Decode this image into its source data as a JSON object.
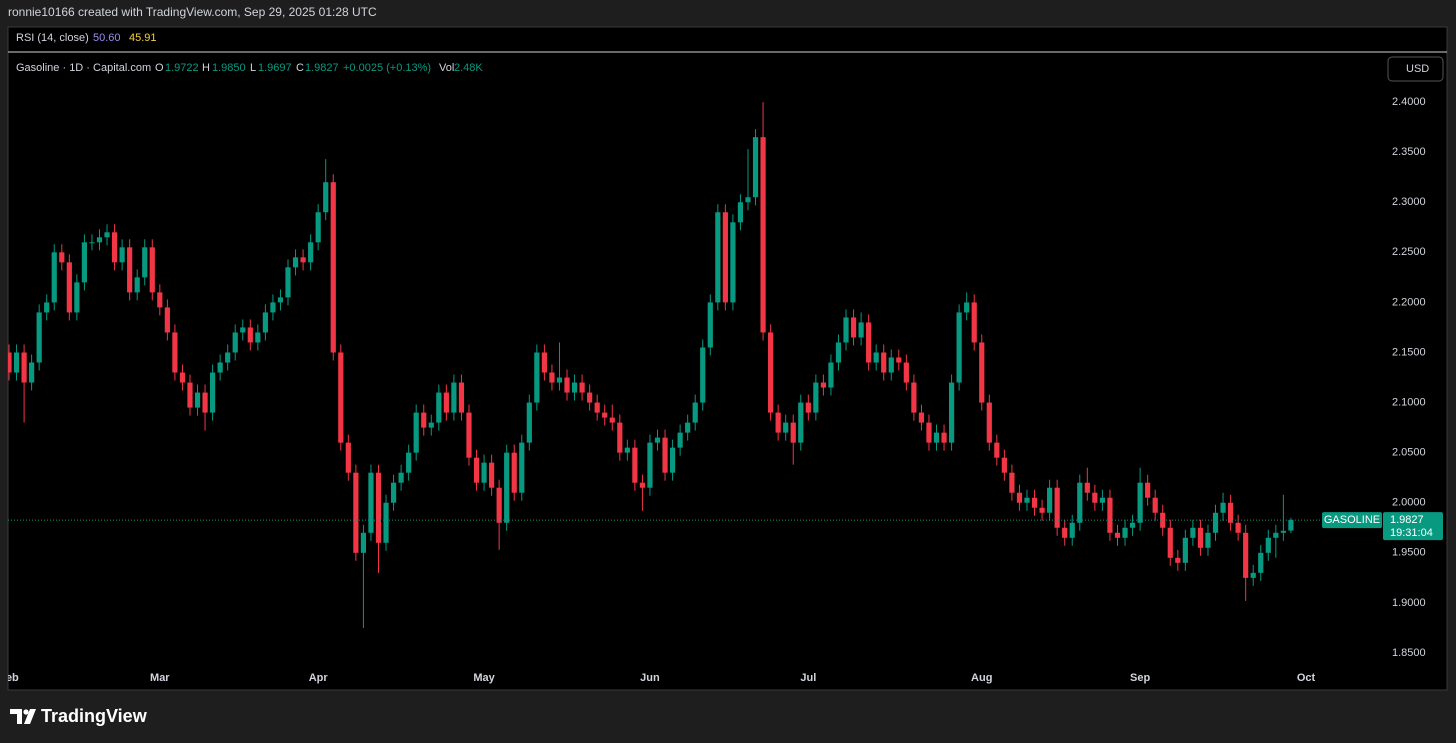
{
  "header": {
    "credit": "ronnie10166 created with TradingView.com, Sep 29, 2025 01:28 UTC"
  },
  "indicator": {
    "name": "RSI (14, close)",
    "value1": "50.60",
    "value2": "45.91"
  },
  "legend": {
    "symbol": "Gasoline · 1D · Capital.com",
    "o_label": "O",
    "open": "1.9722",
    "h_label": "H",
    "high": "1.9850",
    "l_label": "L",
    "low": "1.9697",
    "c_label": "C",
    "close": "1.9827",
    "change": "+0.0025 (+0.13%)",
    "vol_label": "Vol",
    "volume": "2.48K"
  },
  "currency_button": "USD",
  "price_tag": {
    "name": "GASOLINE",
    "countdown": "19:31:04"
  },
  "footer": {
    "brand": "TradingView"
  },
  "chart_data": {
    "type": "candlestick",
    "up_color": "#089981",
    "down_color": "#f23645",
    "grid": false,
    "ylim": [
      1.838,
      2.449
    ],
    "yticks": [
      {
        "value": 1.85,
        "label": "1.8500"
      },
      {
        "value": 1.9,
        "label": "1.9000"
      },
      {
        "value": 1.95,
        "label": "1.9500"
      },
      {
        "value": 2.0,
        "label": "2.0000"
      },
      {
        "value": 2.05,
        "label": "2.0500"
      },
      {
        "value": 2.1,
        "label": "2.1000"
      },
      {
        "value": 2.15,
        "label": "2.1500"
      },
      {
        "value": 2.2,
        "label": "2.2000"
      },
      {
        "value": 2.25,
        "label": "2.2500"
      },
      {
        "value": 2.3,
        "label": "2.3000"
      },
      {
        "value": 2.35,
        "label": "2.3500"
      },
      {
        "value": 2.4,
        "label": "2.4000"
      }
    ],
    "categories": [
      "Feb",
      null,
      null,
      null,
      null,
      null,
      null,
      null,
      null,
      null,
      null,
      null,
      null,
      null,
      null,
      null,
      null,
      null,
      null,
      null,
      "Mar",
      null,
      null,
      null,
      null,
      null,
      null,
      null,
      null,
      null,
      null,
      null,
      null,
      null,
      null,
      null,
      null,
      null,
      null,
      null,
      null,
      "Apr",
      null,
      null,
      null,
      null,
      null,
      null,
      null,
      null,
      null,
      null,
      null,
      null,
      null,
      null,
      null,
      null,
      null,
      null,
      null,
      null,
      null,
      "May",
      null,
      null,
      null,
      null,
      null,
      null,
      null,
      null,
      null,
      null,
      null,
      null,
      null,
      null,
      null,
      null,
      null,
      null,
      null,
      null,
      null,
      "Jun",
      null,
      null,
      null,
      null,
      null,
      null,
      null,
      null,
      null,
      null,
      null,
      null,
      null,
      null,
      null,
      null,
      null,
      null,
      null,
      null,
      "Jul",
      null,
      null,
      null,
      null,
      null,
      null,
      null,
      null,
      null,
      null,
      null,
      null,
      null,
      null,
      null,
      null,
      null,
      null,
      null,
      null,
      null,
      null,
      "Aug",
      null,
      null,
      null,
      null,
      null,
      null,
      null,
      null,
      null,
      null,
      null,
      null,
      null,
      null,
      null,
      null,
      null,
      null,
      null,
      null,
      "Sep",
      null,
      null,
      null,
      null,
      null,
      null,
      null,
      null,
      null,
      null,
      null,
      null,
      null,
      null,
      null,
      null,
      null,
      null,
      null,
      null,
      null,
      "Oct"
    ],
    "open": [
      2.15,
      2.13,
      2.15,
      2.12,
      2.14,
      2.19,
      2.2,
      2.25,
      2.24,
      2.19,
      2.22,
      2.26,
      2.26,
      2.265,
      2.27,
      2.24,
      2.255,
      2.21,
      2.225,
      2.255,
      2.21,
      2.195,
      2.17,
      2.13,
      2.12,
      2.095,
      2.11,
      2.09,
      2.13,
      2.14,
      2.15,
      2.17,
      2.175,
      2.16,
      2.17,
      2.19,
      2.2,
      2.205,
      2.235,
      2.245,
      2.24,
      2.26,
      2.29,
      2.32,
      2.15,
      2.06,
      2.03,
      1.95,
      1.97,
      2.03,
      1.96,
      2.0,
      2.02,
      2.03,
      2.05,
      2.09,
      2.075,
      2.08,
      2.11,
      2.09,
      2.12,
      2.09,
      2.045,
      2.02,
      2.04,
      2.015,
      1.98,
      2.05,
      2.01,
      2.06,
      2.1,
      2.15,
      2.13,
      2.12,
      2.125,
      2.11,
      2.12,
      2.11,
      2.1,
      2.09,
      2.085,
      2.08,
      2.05,
      2.055,
      2.02,
      2.015,
      2.06,
      2.065,
      2.03,
      2.055,
      2.07,
      2.08,
      2.1,
      2.155,
      2.2,
      2.29,
      2.2,
      2.28,
      2.3,
      2.305,
      2.365,
      2.17,
      2.09,
      2.07,
      2.08,
      2.06,
      2.1,
      2.09,
      2.12,
      2.115,
      2.14,
      2.16,
      2.185,
      2.165,
      2.18,
      2.14,
      2.15,
      2.13,
      2.145,
      2.14,
      2.12,
      2.09,
      2.08,
      2.06,
      2.07,
      2.06,
      2.12,
      2.19,
      2.2,
      2.16,
      2.1,
      2.06,
      2.045,
      2.03,
      2.01,
      2.0,
      2.005,
      1.995,
      1.99,
      2.015,
      1.975,
      1.965,
      1.98,
      2.02,
      2.01,
      2.0,
      2.005,
      1.97,
      1.965,
      1.975,
      1.98,
      2.02,
      2.005,
      1.99,
      1.975,
      1.945,
      1.94,
      1.965,
      1.975,
      1.955,
      1.97,
      1.99,
      2.0,
      1.98,
      1.97,
      1.925,
      1.93,
      1.95,
      1.965,
      1.97,
      1.9722,
      null,
      null
    ],
    "high": [
      2.158,
      2.158,
      2.158,
      2.148,
      2.198,
      2.208,
      2.258,
      2.258,
      2.248,
      2.228,
      2.268,
      2.268,
      2.273,
      2.278,
      2.278,
      2.263,
      2.263,
      2.233,
      2.263,
      2.263,
      2.218,
      2.203,
      2.178,
      2.138,
      2.128,
      2.118,
      2.118,
      2.138,
      2.148,
      2.158,
      2.178,
      2.183,
      2.183,
      2.178,
      2.198,
      2.208,
      2.213,
      2.243,
      2.253,
      2.253,
      2.268,
      2.298,
      2.343,
      2.328,
      2.158,
      2.068,
      2.038,
      1.978,
      2.038,
      2.038,
      2.008,
      2.028,
      2.038,
      2.058,
      2.098,
      2.098,
      2.088,
      2.118,
      2.118,
      2.128,
      2.128,
      2.098,
      2.053,
      2.048,
      2.048,
      2.023,
      2.058,
      2.058,
      2.068,
      2.108,
      2.158,
      2.158,
      2.138,
      2.16,
      2.133,
      2.128,
      2.128,
      2.118,
      2.108,
      2.098,
      2.098,
      2.088,
      2.063,
      2.063,
      2.028,
      2.068,
      2.073,
      2.073,
      2.063,
      2.078,
      2.088,
      2.108,
      2.163,
      2.208,
      2.298,
      2.298,
      2.288,
      2.308,
      2.353,
      2.373,
      2.4,
      2.178,
      2.098,
      2.088,
      2.088,
      2.108,
      2.108,
      2.128,
      2.128,
      2.148,
      2.168,
      2.193,
      2.193,
      2.19,
      2.188,
      2.158,
      2.158,
      2.153,
      2.153,
      2.148,
      2.128,
      2.098,
      2.088,
      2.078,
      2.078,
      2.128,
      2.198,
      2.21,
      2.208,
      2.168,
      2.108,
      2.068,
      2.053,
      2.038,
      2.018,
      2.013,
      2.013,
      2.003,
      2.023,
      2.023,
      1.983,
      1.988,
      2.028,
      2.035,
      2.018,
      2.013,
      2.013,
      1.978,
      1.983,
      1.988,
      2.035,
      2.028,
      2.013,
      1.998,
      1.983,
      1.953,
      1.973,
      1.983,
      1.983,
      1.978,
      1.998,
      2.01,
      2.008,
      1.988,
      1.978,
      1.938,
      1.958,
      1.973,
      1.978,
      2.008,
      1.985,
      null,
      null
    ],
    "low": [
      2.122,
      2.122,
      2.08,
      2.112,
      2.132,
      2.182,
      2.192,
      2.232,
      2.182,
      2.182,
      2.212,
      2.252,
      2.252,
      2.257,
      2.232,
      2.232,
      2.202,
      2.202,
      2.217,
      2.202,
      2.187,
      2.162,
      2.122,
      2.112,
      2.087,
      2.087,
      2.072,
      2.082,
      2.122,
      2.132,
      2.142,
      2.162,
      2.152,
      2.152,
      2.162,
      2.182,
      2.192,
      2.197,
      2.227,
      2.232,
      2.232,
      2.252,
      2.282,
      2.142,
      2.052,
      2.022,
      1.942,
      1.875,
      1.962,
      1.93,
      1.952,
      1.992,
      2.012,
      2.022,
      2.042,
      2.067,
      2.067,
      2.072,
      2.082,
      2.082,
      2.082,
      2.037,
      2.012,
      2.012,
      2.007,
      1.953,
      1.972,
      2.002,
      2.002,
      2.052,
      2.092,
      2.122,
      2.112,
      2.112,
      2.102,
      2.102,
      2.102,
      2.092,
      2.082,
      2.077,
      2.072,
      2.042,
      2.042,
      2.012,
      1.992,
      2.007,
      2.052,
      2.022,
      2.022,
      2.047,
      2.062,
      2.072,
      2.092,
      2.147,
      2.192,
      2.192,
      2.192,
      2.272,
      2.292,
      2.297,
      2.162,
      2.082,
      2.062,
      2.062,
      2.038,
      2.052,
      2.082,
      2.082,
      2.107,
      2.107,
      2.132,
      2.152,
      2.157,
      2.157,
      2.132,
      2.132,
      2.122,
      2.122,
      2.132,
      2.112,
      2.082,
      2.072,
      2.052,
      2.052,
      2.052,
      2.052,
      2.112,
      2.182,
      2.152,
      2.092,
      2.052,
      2.037,
      2.022,
      2.002,
      1.992,
      1.992,
      1.987,
      1.982,
      1.982,
      1.967,
      1.957,
      1.957,
      1.972,
      2.002,
      1.992,
      1.992,
      1.962,
      1.957,
      1.957,
      1.967,
      1.972,
      1.997,
      1.982,
      1.967,
      1.937,
      1.932,
      1.932,
      1.957,
      1.947,
      1.947,
      1.962,
      1.982,
      1.972,
      1.962,
      1.902,
      1.917,
      1.922,
      1.942,
      1.945,
      1.962,
      1.9697,
      null,
      null
    ],
    "close": [
      2.13,
      2.15,
      2.12,
      2.14,
      2.19,
      2.2,
      2.25,
      2.24,
      2.19,
      2.22,
      2.26,
      2.26,
      2.265,
      2.27,
      2.24,
      2.255,
      2.21,
      2.225,
      2.255,
      2.21,
      2.195,
      2.17,
      2.13,
      2.12,
      2.095,
      2.11,
      2.09,
      2.13,
      2.14,
      2.15,
      2.17,
      2.175,
      2.16,
      2.17,
      2.19,
      2.2,
      2.205,
      2.235,
      2.245,
      2.24,
      2.26,
      2.29,
      2.32,
      2.15,
      2.06,
      2.03,
      1.95,
      1.97,
      2.03,
      1.96,
      2.0,
      2.02,
      2.03,
      2.05,
      2.09,
      2.075,
      2.08,
      2.11,
      2.09,
      2.12,
      2.09,
      2.045,
      2.02,
      2.04,
      2.015,
      1.98,
      2.05,
      2.01,
      2.06,
      2.1,
      2.15,
      2.13,
      2.12,
      2.125,
      2.11,
      2.12,
      2.11,
      2.1,
      2.09,
      2.085,
      2.08,
      2.05,
      2.055,
      2.02,
      2.015,
      2.06,
      2.065,
      2.03,
      2.055,
      2.07,
      2.08,
      2.1,
      2.155,
      2.2,
      2.29,
      2.2,
      2.28,
      2.3,
      2.305,
      2.365,
      2.17,
      2.09,
      2.07,
      2.08,
      2.06,
      2.1,
      2.09,
      2.12,
      2.115,
      2.14,
      2.16,
      2.185,
      2.165,
      2.18,
      2.14,
      2.15,
      2.13,
      2.145,
      2.14,
      2.12,
      2.09,
      2.08,
      2.06,
      2.07,
      2.06,
      2.12,
      2.19,
      2.2,
      2.16,
      2.1,
      2.06,
      2.045,
      2.03,
      2.01,
      2.0,
      2.005,
      1.995,
      1.99,
      2.015,
      1.975,
      1.965,
      1.98,
      2.02,
      2.01,
      2.0,
      2.005,
      1.97,
      1.965,
      1.975,
      1.98,
      2.02,
      2.005,
      1.99,
      1.975,
      1.945,
      1.94,
      1.965,
      1.975,
      1.955,
      1.97,
      1.99,
      2.0,
      1.98,
      1.97,
      1.925,
      1.93,
      1.95,
      1.965,
      1.97,
      1.972,
      1.9827,
      null,
      null
    ]
  }
}
